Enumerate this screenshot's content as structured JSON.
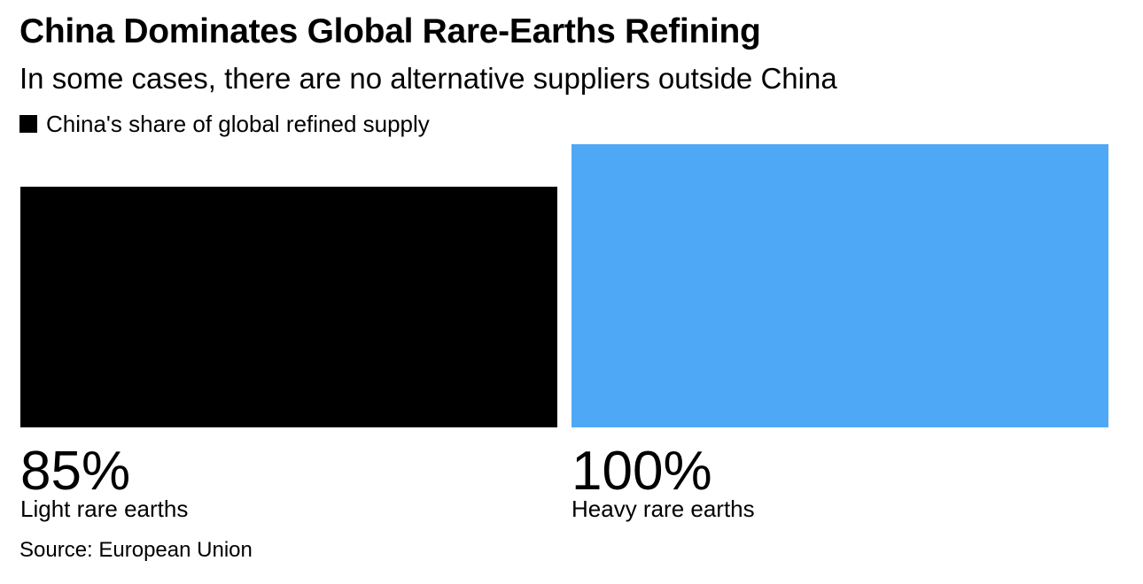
{
  "chart_data": {
    "type": "bar",
    "title": "China Dominates Global Rare-Earths Refining",
    "subtitle": "In some cases, there are no alternative suppliers outside China",
    "legend": {
      "entries": [
        {
          "label": "China's share of global refined supply",
          "color": "#000000"
        }
      ],
      "placement": "top-left"
    },
    "categories": [
      "Light rare earths",
      "Heavy rare earths"
    ],
    "series": [
      {
        "name": "China's share of global refined supply",
        "values": [
          85,
          100
        ],
        "value_labels": [
          "85%",
          "100%"
        ],
        "colors": [
          "#000000",
          "#4fa8f6"
        ]
      }
    ],
    "ylim": [
      0,
      100
    ],
    "grid": false,
    "xlabel": "",
    "ylabel": ""
  },
  "source": "Source: European Union"
}
